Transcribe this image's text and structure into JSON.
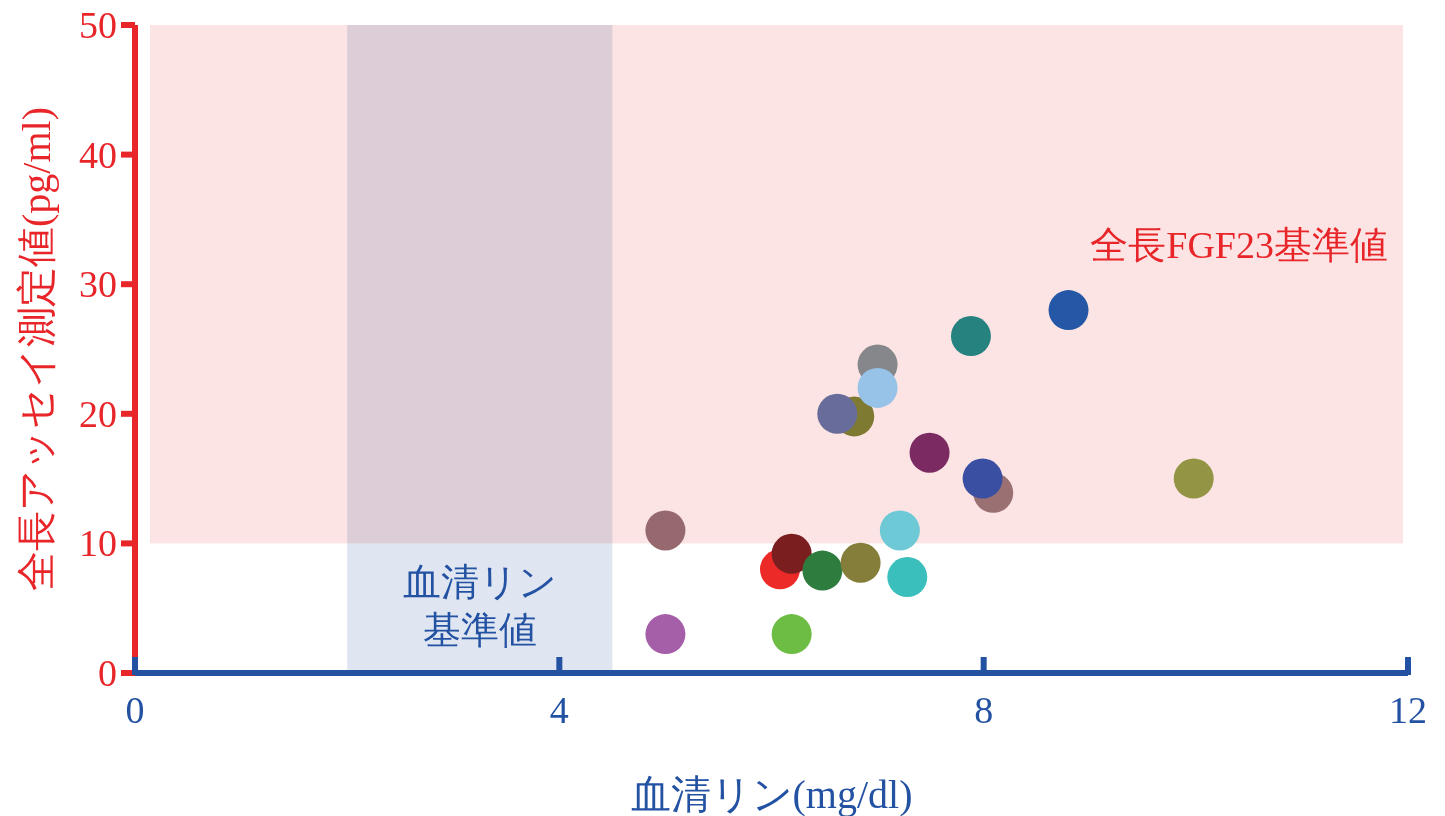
{
  "chart_data": {
    "type": "scatter",
    "xlabel": "血清リン(mg/dl)",
    "ylabel": "全長アッセイ測定値(pg/ml)",
    "xlim": [
      0,
      12
    ],
    "xticks": [
      0,
      4,
      8,
      12
    ],
    "ylim": [
      0,
      50
    ],
    "yticks": [
      0,
      10,
      20,
      30,
      40,
      50
    ],
    "grid": false,
    "marker": "circle",
    "bands": [
      {
        "axis": "y",
        "from": 10,
        "to": 50,
        "label": "全長FGF23基準値",
        "color": "#fce4e4"
      },
      {
        "axis": "x",
        "from": 2,
        "to": 4.5,
        "label": "血清リン基準値",
        "color": "#dfe6f1"
      }
    ],
    "series": [
      {
        "x": [
          5.0,
          5.0,
          6.08,
          6.19,
          6.19,
          6.48,
          6.78,
          6.62,
          6.84,
          7.0,
          7.0,
          7.21,
          7.28,
          7.49,
          7.88,
          8.09,
          7.99,
          8.8,
          9.98
        ],
        "values": [
          11,
          3,
          8,
          9.2,
          3,
          7.9,
          19.8,
          20,
          8.5,
          23.8,
          22,
          11,
          7.4,
          17,
          26,
          13.9,
          15,
          28,
          15
        ],
        "colors": [
          "#96696e",
          "#a55fa8",
          "#ec2a27",
          "#7a1e20",
          "#6dbd45",
          "#2e7d3e",
          "#7f7a32",
          "#676c9a",
          "#857e3b",
          "#85878a",
          "#98c3e8",
          "#6cc9d5",
          "#3bbfbd",
          "#7b2b62",
          "#26827f",
          "#9b7073",
          "#3a4fa2",
          "#2458a6",
          "#939544"
        ]
      }
    ]
  }
}
